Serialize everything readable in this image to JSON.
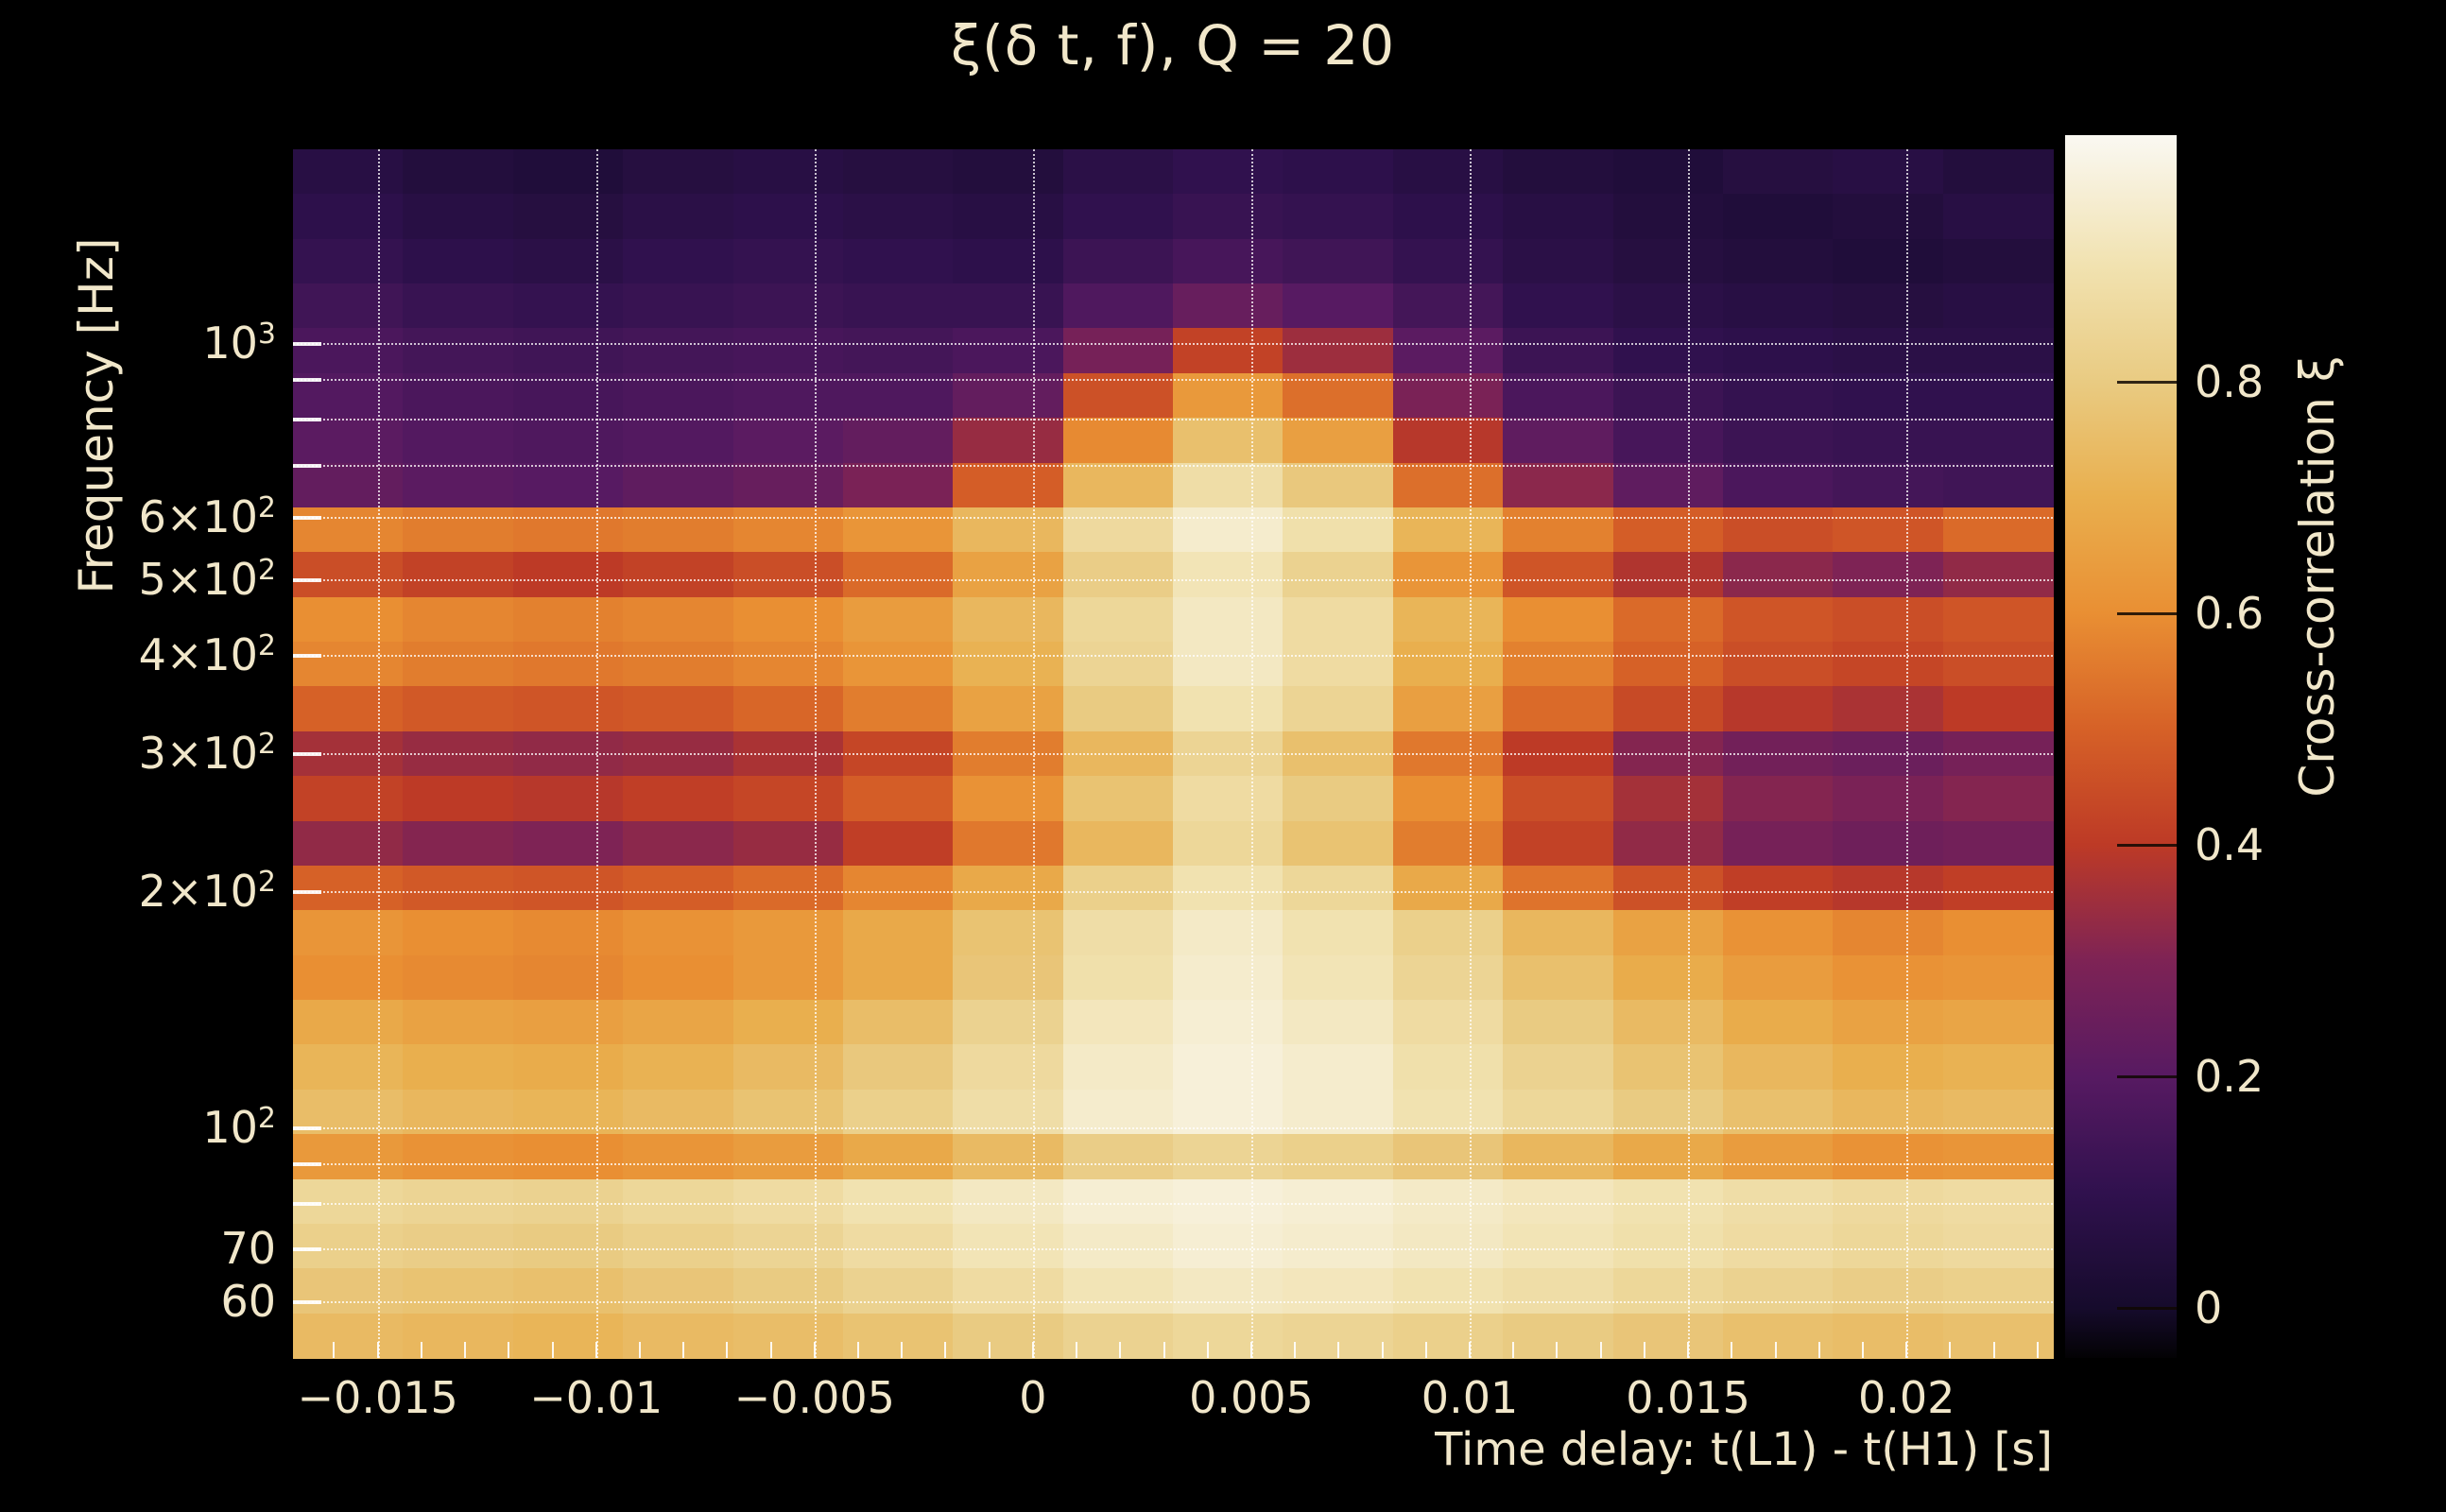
{
  "title": "ξ(δ t, f), Q = 20",
  "colors": {
    "background": "#000000",
    "text": "#f1e7ca",
    "grid": "rgba(255,255,255,0.75)"
  },
  "chart_data": {
    "type": "heatmap",
    "title": "ξ(δ t, f), Q = 20",
    "xlabel": "Time delay: t(L1) - t(H1) [s]",
    "ylabel": "Frequency [Hz]",
    "colorbar_label": "Cross-correlation ξ",
    "x_range_s": [
      -0.01694,
      0.02335
    ],
    "y_range_hz": [
      50.8,
      1766
    ],
    "y_scale": "log",
    "grid": true,
    "x_ticks": [
      {
        "value": -0.015,
        "label": "−0.015"
      },
      {
        "value": -0.01,
        "label": "−0.01"
      },
      {
        "value": -0.005,
        "label": "−0.005"
      },
      {
        "value": 0,
        "label": "0"
      },
      {
        "value": 0.005,
        "label": "0.005"
      },
      {
        "value": 0.01,
        "label": "0.01"
      },
      {
        "value": 0.015,
        "label": "0.015"
      },
      {
        "value": 0.02,
        "label": "0.02"
      }
    ],
    "x_minor_tick_step_s": 0.001,
    "y_ticks": [
      {
        "value": 1000,
        "label": "10",
        "sup": "3"
      },
      {
        "value": 600,
        "label": "6×10",
        "sup": "2"
      },
      {
        "value": 500,
        "label": "5×10",
        "sup": "2"
      },
      {
        "value": 400,
        "label": "4×10",
        "sup": "2"
      },
      {
        "value": 300,
        "label": "3×10",
        "sup": "2"
      },
      {
        "value": 200,
        "label": "2×10",
        "sup": "2"
      },
      {
        "value": 100,
        "label": "10",
        "sup": "2"
      },
      {
        "value": 70,
        "label": "70",
        "sup": ""
      },
      {
        "value": 60,
        "label": "60",
        "sup": ""
      }
    ],
    "y_gridlines_hz": [
      1000,
      900,
      800,
      700,
      600,
      500,
      400,
      300,
      200,
      100,
      90,
      80,
      70,
      60
    ],
    "colorbar_value_range": [
      -0.043,
      1.013
    ],
    "colorbar_ticks": [
      {
        "value": 0.8,
        "label": "0.8"
      },
      {
        "value": 0.6,
        "label": "0.6"
      },
      {
        "value": 0.4,
        "label": "0.4"
      },
      {
        "value": 0.2,
        "label": "0.2"
      },
      {
        "value": 0,
        "label": "0"
      }
    ],
    "colormap_stops": [
      [
        -0.043,
        "#030204"
      ],
      [
        0.0,
        "#160b2c"
      ],
      [
        0.1,
        "#30114e"
      ],
      [
        0.2,
        "#571a62"
      ],
      [
        0.3,
        "#7e2355"
      ],
      [
        0.4,
        "#bd3a26"
      ],
      [
        0.5,
        "#d66127"
      ],
      [
        0.6,
        "#e98f33"
      ],
      [
        0.7,
        "#e9af4e"
      ],
      [
        0.8,
        "#e9cb82"
      ],
      [
        0.9,
        "#f1e2b0"
      ],
      [
        1.013,
        "#faf8f2"
      ]
    ],
    "time_bin_centers_s": [
      -0.0155,
      -0.013,
      -0.0105,
      -0.008,
      -0.0055,
      -0.003,
      -0.0005,
      0.002,
      0.0045,
      0.007,
      0.0095,
      0.012,
      0.0145,
      0.017,
      0.0195,
      0.022
    ],
    "freq_bin_centers_hz": [
      1650,
      1460,
      1290,
      1140,
      1010,
      895,
      790,
      700,
      620,
      550,
      490,
      435,
      385,
      340,
      300,
      265,
      235,
      205,
      180,
      160,
      140,
      125,
      110,
      97,
      86,
      76,
      60
    ],
    "values": [
      [
        0.07,
        0.05,
        0.04,
        0.06,
        0.07,
        0.06,
        0.05,
        0.08,
        0.1,
        0.09,
        0.07,
        0.05,
        0.04,
        0.06,
        0.07,
        0.05
      ],
      [
        0.09,
        0.07,
        0.06,
        0.08,
        0.09,
        0.08,
        0.07,
        0.1,
        0.12,
        0.11,
        0.09,
        0.07,
        0.05,
        0.04,
        0.05,
        0.07
      ],
      [
        0.11,
        0.09,
        0.08,
        0.1,
        0.11,
        0.1,
        0.09,
        0.13,
        0.16,
        0.14,
        0.11,
        0.08,
        0.06,
        0.05,
        0.04,
        0.05
      ],
      [
        0.14,
        0.12,
        0.11,
        0.12,
        0.13,
        0.12,
        0.12,
        0.18,
        0.24,
        0.2,
        0.15,
        0.1,
        0.08,
        0.07,
        0.06,
        0.07
      ],
      [
        0.17,
        0.15,
        0.14,
        0.15,
        0.16,
        0.15,
        0.17,
        0.28,
        0.42,
        0.35,
        0.21,
        0.13,
        0.1,
        0.09,
        0.08,
        0.08
      ],
      [
        0.19,
        0.17,
        0.16,
        0.17,
        0.18,
        0.18,
        0.23,
        0.46,
        0.63,
        0.53,
        0.29,
        0.17,
        0.13,
        0.11,
        0.1,
        0.1
      ],
      [
        0.21,
        0.19,
        0.18,
        0.19,
        0.21,
        0.23,
        0.34,
        0.59,
        0.76,
        0.65,
        0.39,
        0.22,
        0.16,
        0.13,
        0.12,
        0.12
      ],
      [
        0.23,
        0.21,
        0.2,
        0.22,
        0.24,
        0.29,
        0.49,
        0.73,
        0.88,
        0.79,
        0.53,
        0.32,
        0.22,
        0.17,
        0.15,
        0.14
      ],
      [
        0.58,
        0.56,
        0.55,
        0.56,
        0.58,
        0.62,
        0.73,
        0.86,
        0.95,
        0.89,
        0.72,
        0.57,
        0.49,
        0.45,
        0.47,
        0.52
      ],
      [
        0.45,
        0.42,
        0.4,
        0.42,
        0.45,
        0.52,
        0.66,
        0.81,
        0.91,
        0.83,
        0.62,
        0.47,
        0.38,
        0.32,
        0.3,
        0.33
      ],
      [
        0.6,
        0.58,
        0.57,
        0.58,
        0.6,
        0.64,
        0.73,
        0.85,
        0.93,
        0.87,
        0.72,
        0.6,
        0.52,
        0.47,
        0.45,
        0.47
      ],
      [
        0.58,
        0.56,
        0.55,
        0.56,
        0.58,
        0.62,
        0.71,
        0.84,
        0.93,
        0.87,
        0.7,
        0.57,
        0.5,
        0.45,
        0.43,
        0.45
      ],
      [
        0.5,
        0.48,
        0.47,
        0.48,
        0.51,
        0.56,
        0.66,
        0.8,
        0.9,
        0.84,
        0.65,
        0.52,
        0.44,
        0.39,
        0.37,
        0.4
      ],
      [
        0.36,
        0.34,
        0.33,
        0.34,
        0.37,
        0.43,
        0.56,
        0.73,
        0.84,
        0.76,
        0.55,
        0.4,
        0.31,
        0.27,
        0.25,
        0.28
      ],
      [
        0.42,
        0.4,
        0.39,
        0.41,
        0.43,
        0.49,
        0.61,
        0.77,
        0.87,
        0.8,
        0.6,
        0.45,
        0.36,
        0.31,
        0.29,
        0.31
      ],
      [
        0.33,
        0.31,
        0.3,
        0.32,
        0.34,
        0.41,
        0.55,
        0.73,
        0.85,
        0.77,
        0.56,
        0.42,
        0.33,
        0.28,
        0.26,
        0.27
      ],
      [
        0.5,
        0.48,
        0.47,
        0.49,
        0.52,
        0.58,
        0.68,
        0.82,
        0.9,
        0.85,
        0.68,
        0.54,
        0.46,
        0.41,
        0.39,
        0.41
      ],
      [
        0.62,
        0.6,
        0.59,
        0.61,
        0.63,
        0.68,
        0.77,
        0.88,
        0.94,
        0.9,
        0.82,
        0.73,
        0.66,
        0.61,
        0.58,
        0.6
      ],
      [
        0.6,
        0.59,
        0.58,
        0.6,
        0.63,
        0.68,
        0.78,
        0.89,
        0.95,
        0.91,
        0.84,
        0.76,
        0.69,
        0.64,
        0.61,
        0.62
      ],
      [
        0.68,
        0.66,
        0.65,
        0.67,
        0.7,
        0.75,
        0.83,
        0.92,
        0.96,
        0.93,
        0.87,
        0.8,
        0.74,
        0.69,
        0.66,
        0.67
      ],
      [
        0.72,
        0.7,
        0.69,
        0.71,
        0.74,
        0.79,
        0.86,
        0.94,
        0.97,
        0.95,
        0.89,
        0.83,
        0.77,
        0.73,
        0.7,
        0.71
      ],
      [
        0.75,
        0.73,
        0.72,
        0.74,
        0.77,
        0.82,
        0.88,
        0.95,
        0.97,
        0.95,
        0.9,
        0.85,
        0.8,
        0.76,
        0.73,
        0.74
      ],
      [
        0.63,
        0.61,
        0.6,
        0.62,
        0.64,
        0.68,
        0.74,
        0.81,
        0.84,
        0.82,
        0.78,
        0.73,
        0.68,
        0.64,
        0.61,
        0.62
      ],
      [
        0.85,
        0.84,
        0.83,
        0.85,
        0.87,
        0.9,
        0.93,
        0.96,
        0.97,
        0.96,
        0.94,
        0.92,
        0.9,
        0.88,
        0.86,
        0.87
      ],
      [
        0.82,
        0.81,
        0.8,
        0.82,
        0.84,
        0.87,
        0.91,
        0.94,
        0.96,
        0.95,
        0.93,
        0.91,
        0.89,
        0.87,
        0.85,
        0.86
      ],
      [
        0.78,
        0.77,
        0.76,
        0.78,
        0.8,
        0.83,
        0.87,
        0.91,
        0.93,
        0.92,
        0.9,
        0.88,
        0.85,
        0.83,
        0.81,
        0.82
      ],
      [
        0.74,
        0.73,
        0.72,
        0.74,
        0.75,
        0.77,
        0.8,
        0.83,
        0.85,
        0.84,
        0.82,
        0.8,
        0.78,
        0.76,
        0.75,
        0.76
      ]
    ]
  }
}
